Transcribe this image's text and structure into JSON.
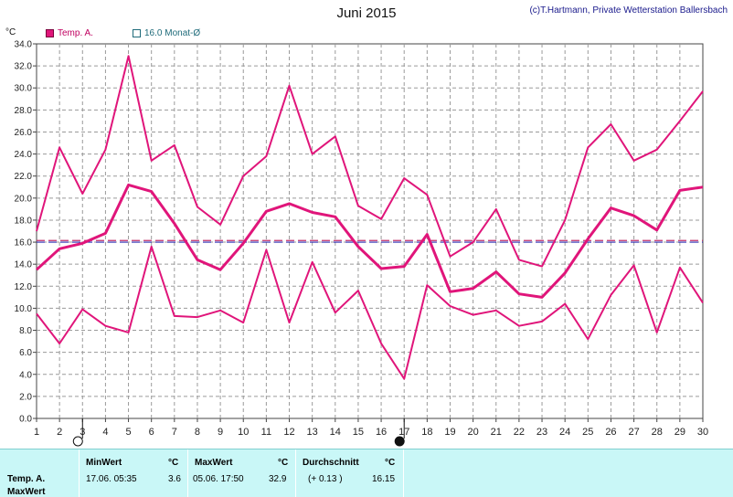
{
  "title": "Juni 2015",
  "credit": "(c)T.Hartmann, Private Wetterstation Ballersbach",
  "unit_label": "°C",
  "legend": [
    {
      "label": "Temp. A.",
      "color": "#e0157a"
    },
    {
      "label": "16.0 Monat-Ø",
      "color": "#1f6b7a"
    }
  ],
  "chart_data": {
    "type": "line",
    "x": [
      1,
      2,
      3,
      4,
      5,
      6,
      7,
      8,
      9,
      10,
      11,
      12,
      13,
      14,
      15,
      16,
      17,
      18,
      19,
      20,
      21,
      22,
      23,
      24,
      25,
      26,
      27,
      28,
      29,
      30
    ],
    "xlim": [
      1,
      30
    ],
    "ylim": [
      0,
      34
    ],
    "y_ticks": [
      "0.0",
      "2.0",
      "4.0",
      "6.0",
      "8.0",
      "10.0",
      "12.0",
      "14.0",
      "16.0",
      "18.0",
      "20.0",
      "22.0",
      "24.0",
      "26.0",
      "28.0",
      "30.0",
      "32.0",
      "34.0"
    ],
    "x_ticks": [
      "1",
      "2",
      "3",
      "4",
      "5",
      "6",
      "7",
      "8",
      "9",
      "10",
      "11",
      "12",
      "13",
      "14",
      "15",
      "16",
      "17",
      "18",
      "19",
      "20",
      "21",
      "22",
      "23",
      "24",
      "25",
      "26",
      "27",
      "28",
      "29",
      "30"
    ],
    "grid": true,
    "series": [
      {
        "role": "max",
        "color": "#e0157a",
        "values": [
          17.0,
          24.6,
          20.4,
          24.4,
          32.9,
          23.4,
          24.8,
          19.2,
          17.6,
          22.0,
          23.8,
          30.2,
          24.0,
          25.6,
          19.3,
          18.1,
          21.8,
          20.3,
          14.7,
          16.0,
          19.0,
          14.4,
          13.8,
          18.0,
          24.6,
          26.7,
          23.4,
          24.4,
          27.0,
          29.7
        ]
      },
      {
        "role": "avg",
        "color": "#e0157a",
        "values": [
          13.5,
          15.4,
          15.9,
          16.8,
          21.2,
          20.6,
          17.7,
          14.4,
          13.5,
          15.9,
          18.8,
          19.5,
          18.7,
          18.3,
          15.6,
          13.6,
          13.8,
          16.7,
          11.5,
          11.8,
          13.3,
          11.3,
          11.0,
          13.2,
          16.3,
          19.1,
          18.4,
          17.1,
          20.7,
          21.0
        ]
      },
      {
        "role": "min",
        "color": "#e0157a",
        "values": [
          9.5,
          6.8,
          9.9,
          8.4,
          7.8,
          15.6,
          9.3,
          9.2,
          9.8,
          8.7,
          15.3,
          8.7,
          14.2,
          9.6,
          11.6,
          6.8,
          3.6,
          12.1,
          10.2,
          9.4,
          9.8,
          8.4,
          8.8,
          10.4,
          7.2,
          11.2,
          13.9,
          7.8,
          13.7,
          10.5
        ]
      }
    ],
    "reference_lines": [
      {
        "value": 16.0,
        "color": "#2a2ab0",
        "style": "dashed"
      },
      {
        "value": 16.15,
        "color": "#c0306a",
        "style": "dashed"
      }
    ],
    "moon_markers": [
      {
        "day": 3,
        "phase": "full"
      },
      {
        "day": 17,
        "phase": "new"
      }
    ]
  },
  "footer": {
    "row_label_1": "Temp. A.",
    "row_label_2": "MaxWert",
    "min_header": "MinWert",
    "min_unit": "°C",
    "min_time": "17.06.  05:35",
    "min_value": "3.6",
    "max_header": "MaxWert",
    "max_unit": "°C",
    "max_time": "05.06.  17:50",
    "max_value": "32.9",
    "avg_header": "Durchschnitt",
    "avg_unit": "°C",
    "avg_delta": "(+ 0.13 )",
    "avg_value": "16.15"
  }
}
